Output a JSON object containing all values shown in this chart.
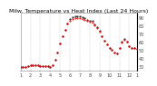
{
  "title": "Milw. Temperature vs Heat Index (Last 24 Hours)",
  "bg_color": "#ffffff",
  "plot_bg": "#ffffff",
  "line1_color": "#ff0000",
  "line2_color": "#000000",
  "ylim": [
    25,
    95
  ],
  "xlim": [
    0,
    47
  ],
  "grid_positions": [
    4,
    8,
    12,
    16,
    20,
    24,
    28,
    32,
    36,
    40,
    44
  ],
  "x": [
    0,
    1,
    2,
    3,
    4,
    5,
    6,
    7,
    8,
    9,
    10,
    11,
    12,
    13,
    14,
    15,
    16,
    17,
    18,
    19,
    20,
    21,
    22,
    23,
    24,
    25,
    26,
    27,
    28,
    29,
    30,
    31,
    32,
    33,
    34,
    35,
    36,
    37,
    38,
    39,
    40,
    41,
    42,
    43,
    44,
    45,
    46,
    47
  ],
  "y_temp": [
    29,
    29,
    29,
    30,
    31,
    32,
    32,
    31,
    30,
    30,
    30,
    30,
    29,
    32,
    38,
    47,
    58,
    67,
    75,
    82,
    86,
    88,
    89,
    89,
    89,
    88,
    87,
    85,
    84,
    83,
    80,
    77,
    72,
    67,
    61,
    57,
    53,
    50,
    47,
    46,
    52,
    59,
    62,
    60,
    55,
    53,
    52,
    51
  ],
  "y_heat": [
    29,
    29,
    29,
    30,
    31,
    32,
    32,
    31,
    30,
    30,
    30,
    30,
    29,
    32,
    38,
    47,
    58,
    67,
    75,
    82,
    88,
    90,
    91,
    91,
    91,
    90,
    89,
    87,
    86,
    85,
    81,
    78,
    73,
    67,
    61,
    57,
    53,
    50,
    47,
    46,
    52,
    60,
    63,
    60,
    55,
    53,
    52,
    51
  ],
  "ytick_values": [
    30,
    40,
    50,
    60,
    70,
    80,
    90
  ],
  "ytick_labels": [
    "30",
    "40",
    "50",
    "60",
    "70",
    "80",
    "90"
  ],
  "xtick_pos": [
    0,
    4,
    8,
    12,
    16,
    20,
    24,
    28,
    32,
    36,
    40,
    44,
    47
  ],
  "xtick_labels": [
    "1",
    "2",
    "3",
    "4",
    "5",
    "6",
    "7",
    "8",
    "9",
    "10",
    "11",
    "12",
    "1"
  ],
  "title_fontsize": 4.5,
  "tick_fontsize": 3.5,
  "line_width": 0.6,
  "marker_size": 1.0
}
